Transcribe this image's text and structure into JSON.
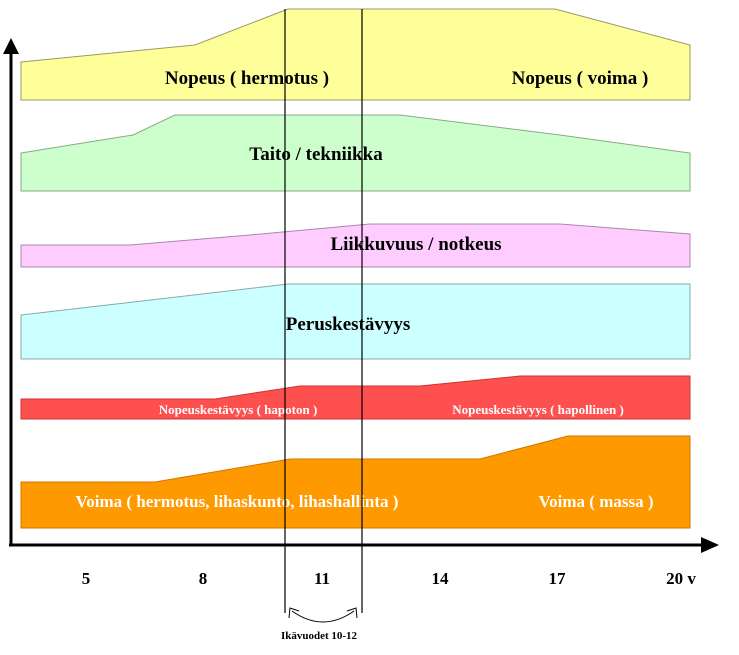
{
  "bands": [
    {
      "id": "nopeus",
      "fill": "#ffff99",
      "labels": [
        "Nopeus ( hermotus )",
        "Nopeus ( voima )"
      ]
    },
    {
      "id": "taito",
      "fill": "#ccffcc",
      "labels": [
        "Taito / tekniikka"
      ]
    },
    {
      "id": "liikkuvuus",
      "fill": "#ffccff",
      "labels": [
        "Liikkuvuus / notkeus"
      ]
    },
    {
      "id": "peruskestavyys",
      "fill": "#ccffff",
      "labels": [
        "Peruskestävyys"
      ]
    },
    {
      "id": "nopeuskestavyys",
      "fill": "#ff5050",
      "labels": [
        "Nopeuskestävyys ( hapoton )",
        "Nopeuskestävyys ( hapollinen )"
      ]
    },
    {
      "id": "voima",
      "fill": "#ff9900",
      "labels": [
        "Voima ( hermotus, lihaskunto, lihashallinta )",
        "Voima ( massa )"
      ]
    }
  ],
  "x_axis_ticks": [
    "5",
    "8",
    "11",
    "14",
    "17",
    "20 v"
  ],
  "sensitive_period_label": "Ikävuodet 10-12"
}
